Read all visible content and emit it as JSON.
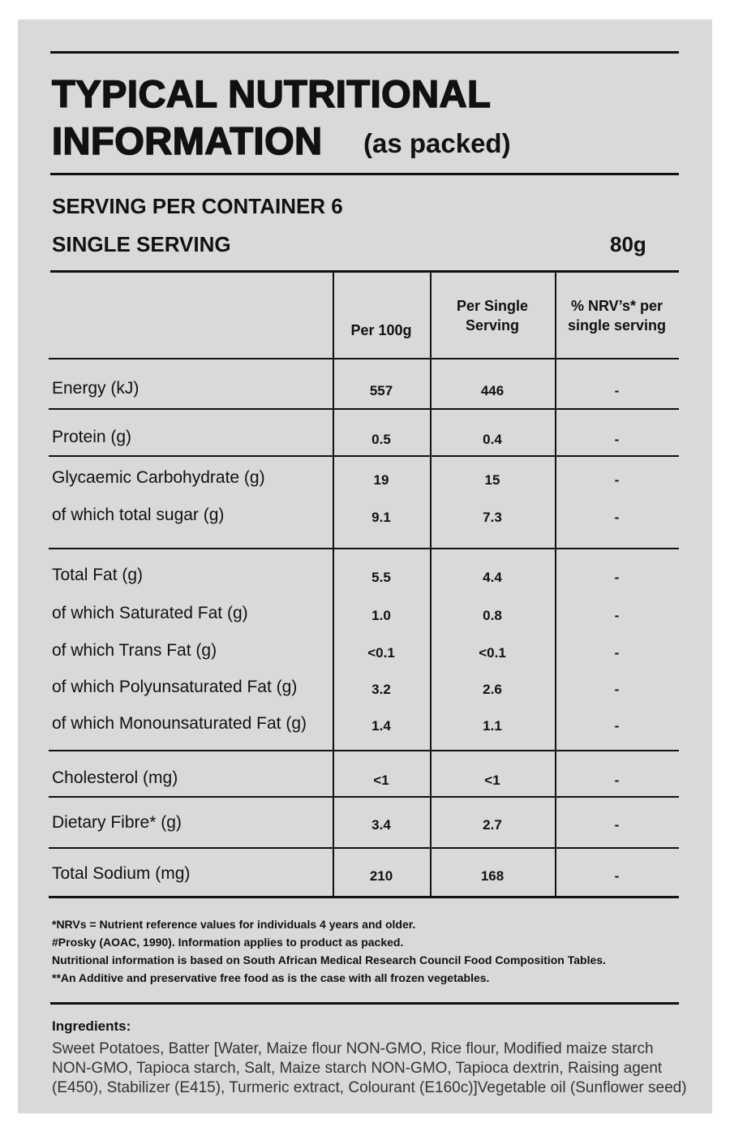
{
  "header": {
    "title_line1": "TYPICAL NUTRITIONAL",
    "title_line2": "INFORMATION",
    "title_note": "(as packed)"
  },
  "serving": {
    "per_container": "SERVING PER CONTAINER 6",
    "single_label": "SINGLE SERVING",
    "single_value": "80g"
  },
  "table": {
    "columns": [
      "Per 100g",
      "Per Single Serving",
      "% NRV’s* per single serving"
    ],
    "groups": [
      [
        [
          "Energy (kJ)",
          "557",
          "446",
          "-"
        ]
      ],
      [
        [
          "Protein (g)",
          "0.5",
          "0.4",
          "-"
        ]
      ],
      [
        [
          "Glycaemic Carbohydrate (g)",
          "19",
          "15",
          "-"
        ],
        [
          "of which total sugar (g)",
          "9.1",
          "7.3",
          "-"
        ]
      ],
      [
        [
          "Total Fat (g)",
          "5.5",
          "4.4",
          "-"
        ],
        [
          "of which Saturated Fat (g)",
          "1.0",
          "0.8",
          "-"
        ],
        [
          "of which Trans Fat (g)",
          "<0.1",
          "<0.1",
          "-"
        ],
        [
          "of which Polyunsaturated Fat (g)",
          "3.2",
          "2.6",
          "-"
        ],
        [
          "of which Monounsaturated Fat (g)",
          "1.4",
          "1.1",
          "-"
        ]
      ],
      [
        [
          "Cholesterol (mg)",
          "<1",
          "<1",
          "-"
        ]
      ],
      [
        [
          "Dietary Fibre* (g)",
          "3.4",
          "2.7",
          "-"
        ]
      ],
      [
        [
          "Total Sodium (mg)",
          "210",
          "168",
          "-"
        ]
      ]
    ]
  },
  "footnotes": [
    "*NRVs = Nutrient reference values for individuals 4 years and older.",
    "#Prosky (AOAC, 1990). Information applies to product as packed.",
    "Nutritional information is based on South African Medical Research Council Food Composition Tables.",
    "**An Additive and preservative free food as is the case with all frozen vegetables."
  ],
  "ingredients": {
    "title": "Ingredients:",
    "lines": [
      "Sweet Potatoes, Batter [Water, Maize flour NON-GMO, Rice flour, Modified maize starch",
      "NON-GMO, Tapioca starch, Salt, Maize starch NON-GMO, Tapioca dextrin, Raising agent",
      "(E450), Stabilizer (E415), Turmeric extract, Colourant (E160c)]Vegetable oil (Sunflower seed)"
    ]
  }
}
